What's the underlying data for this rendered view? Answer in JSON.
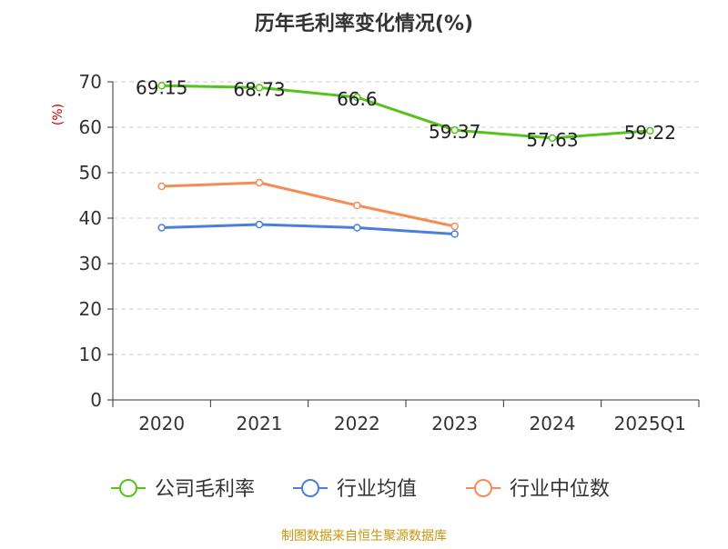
{
  "chart_data": {
    "type": "line",
    "title": "历年毛利率变化情况(%)",
    "ylabel": "(%)",
    "xlabel": "",
    "categories": [
      "2020",
      "2021",
      "2022",
      "2023",
      "2024",
      "2025Q1"
    ],
    "ylim": [
      0,
      70
    ],
    "yticks": [
      0,
      10,
      20,
      30,
      40,
      50,
      60,
      70
    ],
    "grid": true,
    "legend_position": "bottom",
    "series": [
      {
        "name": "公司毛利率",
        "color": "#52c41a",
        "values": [
          69.15,
          68.73,
          66.6,
          59.37,
          57.63,
          59.22
        ],
        "labels": [
          "69.15",
          "68.73",
          "66.6",
          "59.37",
          "57.63",
          "59.22"
        ]
      },
      {
        "name": "行业均值",
        "color": "#4a7fdc",
        "values": [
          37.9,
          38.6,
          37.9,
          36.5,
          null,
          null
        ]
      },
      {
        "name": "行业中位数",
        "color": "#f68b55",
        "values": [
          47.0,
          47.8,
          42.8,
          38.2,
          null,
          null
        ]
      }
    ],
    "source_note": "制图数据来自恒生聚源数据库",
    "source_color": "#c8960c",
    "ylabel_color": "#cc0000"
  }
}
